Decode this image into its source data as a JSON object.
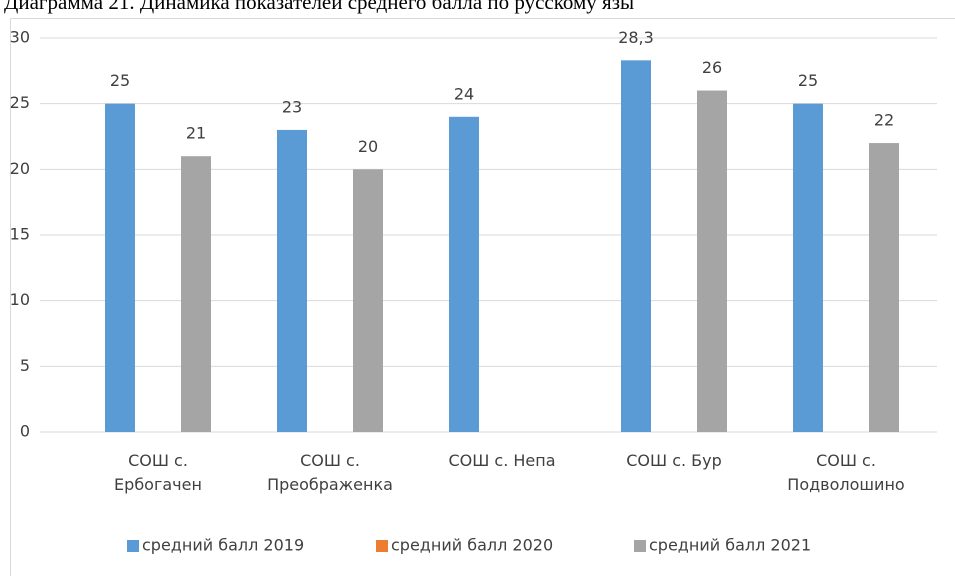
{
  "chart_data": {
    "type": "bar",
    "title": "Диаграмма 21. Динамика показателей среднего балла по русскому язы",
    "categories": [
      "СОШ с. Ербогачен",
      "СОШ с. Преображенка",
      "СОШ с. Непа",
      "СОШ с. Бур",
      "СОШ с. Подволошино"
    ],
    "series": [
      {
        "name": "средний балл 2019",
        "color": "#5b9bd5",
        "values": [
          25,
          23,
          24,
          28.3,
          25
        ],
        "value_labels": [
          "25",
          "23",
          "24",
          "28,3",
          "25"
        ]
      },
      {
        "name": "средний балл 2020",
        "color": "#ed7d31",
        "values": [
          null,
          null,
          null,
          null,
          null
        ]
      },
      {
        "name": "средний балл 2021",
        "color": "#a5a5a5",
        "values": [
          21,
          20,
          null,
          26,
          22
        ]
      }
    ],
    "ylim": [
      0,
      30
    ],
    "yticks": [
      0,
      5,
      10,
      15,
      20,
      25,
      30
    ],
    "grid": true,
    "legend": "bottom"
  }
}
